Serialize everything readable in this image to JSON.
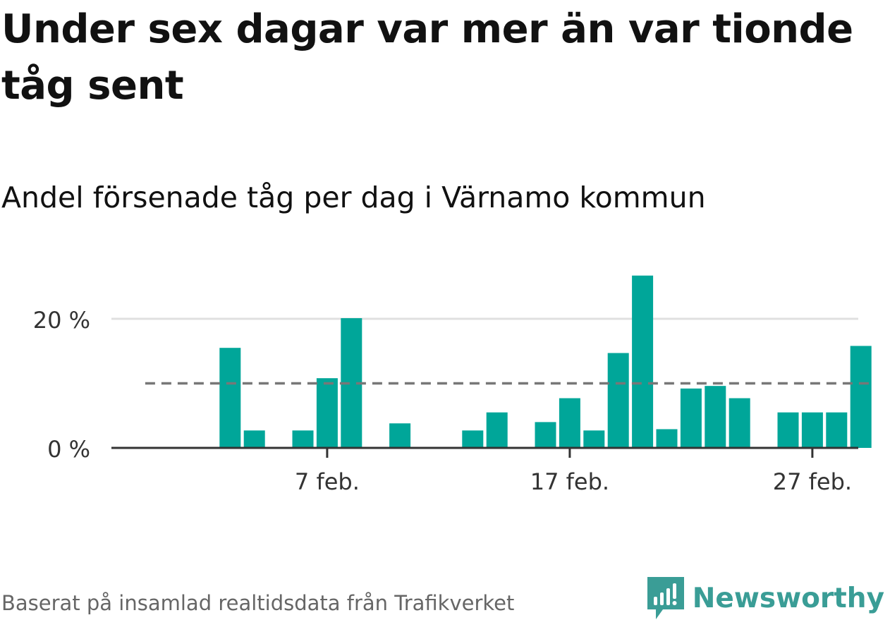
{
  "header": {
    "title": "Under sex dagar var mer än var tionde tåg sent",
    "subtitle": "Andel försenade tåg per dag i Värnamo kommun"
  },
  "footer": {
    "source": "Baserat på insamlad realtidsdata från Trafikverket",
    "brand": "Newsworthy"
  },
  "colors": {
    "bar": "#00a699",
    "reference_line": "#777777",
    "grid": "#e0e0e0",
    "axis": "#333333",
    "brand": "#3a9d96"
  },
  "icons": {
    "brand_logo": "newsworthy-logo-icon"
  },
  "chart_data": {
    "type": "bar",
    "x_type": "date",
    "categories": [
      "2024-02-01",
      "2024-02-02",
      "2024-02-03",
      "2024-02-04",
      "2024-02-05",
      "2024-02-06",
      "2024-02-07",
      "2024-02-08",
      "2024-02-09",
      "2024-02-10",
      "2024-02-11",
      "2024-02-12",
      "2024-02-13",
      "2024-02-14",
      "2024-02-15",
      "2024-02-16",
      "2024-02-17",
      "2024-02-18",
      "2024-02-19",
      "2024-02-20",
      "2024-02-21",
      "2024-02-22",
      "2024-02-23",
      "2024-02-24",
      "2024-02-25",
      "2024-02-26",
      "2024-02-27",
      "2024-02-28",
      "2024-02-29"
    ],
    "values": [
      null,
      null,
      15.5,
      2.7,
      null,
      2.7,
      10.8,
      20.1,
      null,
      3.8,
      null,
      null,
      2.7,
      5.5,
      null,
      4.0,
      7.7,
      2.7,
      14.7,
      26.7,
      2.9,
      9.2,
      9.6,
      7.7,
      null,
      5.5,
      5.5,
      5.5,
      15.8
    ],
    "reference_line": 10,
    "ylim": [
      0,
      27
    ],
    "yticks": [
      0,
      20
    ],
    "ytick_labels": [
      "0 %",
      "20 %"
    ],
    "xticks": [
      "2024-02-07",
      "2024-02-17",
      "2024-02-27"
    ],
    "xtick_labels": [
      "7 feb.",
      "17 feb.",
      "27 feb."
    ],
    "grid": true,
    "legend": "none"
  }
}
